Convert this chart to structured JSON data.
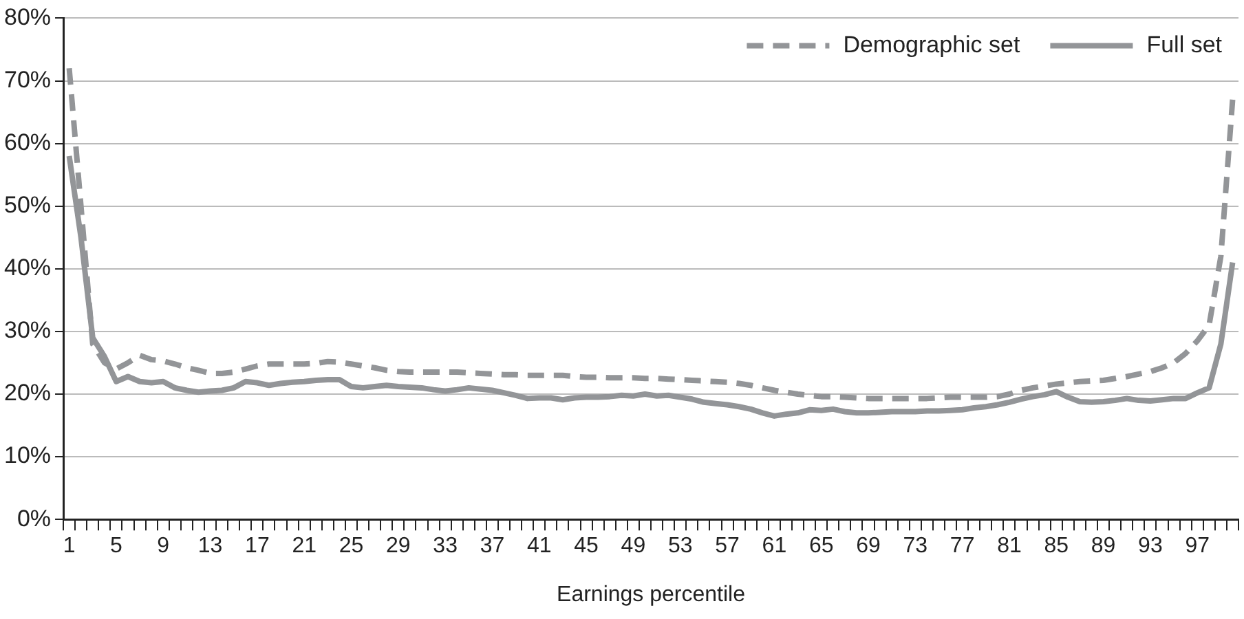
{
  "chart_data": {
    "type": "line",
    "xlabel": "Earnings percentile",
    "categories": [
      "1",
      null,
      null,
      null,
      "5",
      null,
      null,
      null,
      "9",
      null,
      null,
      null,
      "13",
      null,
      null,
      null,
      "17",
      null,
      null,
      null,
      "21",
      null,
      null,
      null,
      "25",
      null,
      null,
      null,
      "29",
      null,
      null,
      null,
      "33",
      null,
      null,
      null,
      "37",
      null,
      null,
      null,
      "41",
      null,
      null,
      null,
      "45",
      null,
      null,
      null,
      "49",
      null,
      null,
      null,
      "53",
      null,
      null,
      null,
      "57",
      null,
      null,
      null,
      "61",
      null,
      null,
      null,
      "65",
      null,
      null,
      null,
      "69",
      null,
      null,
      null,
      "73",
      null,
      null,
      null,
      "77",
      null,
      null,
      null,
      "81",
      null,
      null,
      null,
      "85",
      null,
      null,
      null,
      "89",
      null,
      null,
      null,
      "93",
      null,
      null,
      null,
      "97",
      null,
      null,
      null
    ],
    "series": [
      {
        "name": "Demographic set",
        "color": "#939598",
        "line_style": "dashed",
        "values": [
          72,
          50,
          28,
          25,
          24,
          25,
          26.2,
          25.5,
          25.3,
          24.8,
          24.2,
          23.8,
          23.3,
          23.3,
          23.5,
          24,
          24.5,
          24.8,
          24.8,
          24.8,
          24.8,
          24.9,
          25.2,
          25.1,
          24.8,
          24.5,
          24.2,
          23.8,
          23.6,
          23.5,
          23.5,
          23.5,
          23.5,
          23.5,
          23.4,
          23.3,
          23.2,
          23.1,
          23.1,
          23,
          23,
          23,
          23,
          22.8,
          22.7,
          22.7,
          22.6,
          22.6,
          22.6,
          22.5,
          22.5,
          22.4,
          22.3,
          22.2,
          22.1,
          22,
          21.9,
          21.7,
          21.4,
          21,
          20.6,
          20.3,
          20,
          19.8,
          19.6,
          19.6,
          19.5,
          19.4,
          19.3,
          19.3,
          19.3,
          19.3,
          19.3,
          19.3,
          19.4,
          19.5,
          19.5,
          19.5,
          19.5,
          19.6,
          20,
          20.6,
          21,
          21.3,
          21.6,
          21.8,
          22,
          22.1,
          22.2,
          22.5,
          22.8,
          23.2,
          23.6,
          24.2,
          25,
          26.5,
          28.5,
          31,
          42,
          67
        ]
      },
      {
        "name": "Full set",
        "color": "#939598",
        "line_style": "solid",
        "values": [
          58,
          45,
          29,
          26,
          22,
          22.8,
          22,
          21.8,
          22,
          21,
          20.6,
          20.3,
          20.5,
          20.6,
          21,
          22,
          21.8,
          21.4,
          21.7,
          21.9,
          22,
          22.2,
          22.3,
          22.3,
          21.2,
          21,
          21.2,
          21.4,
          21.2,
          21.1,
          21,
          20.7,
          20.5,
          20.7,
          21,
          20.8,
          20.6,
          20.2,
          19.8,
          19.3,
          19.4,
          19.4,
          19.1,
          19.4,
          19.5,
          19.5,
          19.6,
          19.8,
          19.7,
          20,
          19.7,
          19.8,
          19.5,
          19.2,
          18.7,
          18.5,
          18.3,
          18,
          17.6,
          17,
          16.5,
          16.8,
          17,
          17.5,
          17.4,
          17.6,
          17.2,
          17,
          17,
          17.1,
          17.2,
          17.2,
          17.2,
          17.3,
          17.3,
          17.4,
          17.5,
          17.8,
          18,
          18.3,
          18.7,
          19.2,
          19.6,
          19.9,
          20.4,
          19.5,
          18.8,
          18.7,
          18.8,
          19,
          19.3,
          19,
          18.9,
          19.1,
          19.3,
          19.3,
          20.2,
          21,
          28,
          41
        ]
      }
    ],
    "ylim": [
      0,
      80
    ],
    "yticks": [
      {
        "value": 0,
        "label": "0%"
      },
      {
        "value": 10,
        "label": "10%"
      },
      {
        "value": 20,
        "label": "20%"
      },
      {
        "value": 30,
        "label": "30%"
      },
      {
        "value": 40,
        "label": "40%"
      },
      {
        "value": 50,
        "label": "50%"
      },
      {
        "value": 60,
        "label": "60%"
      },
      {
        "value": 70,
        "label": "70%"
      },
      {
        "value": 80,
        "label": "80%"
      }
    ],
    "grid": "y",
    "legend": "top right"
  }
}
